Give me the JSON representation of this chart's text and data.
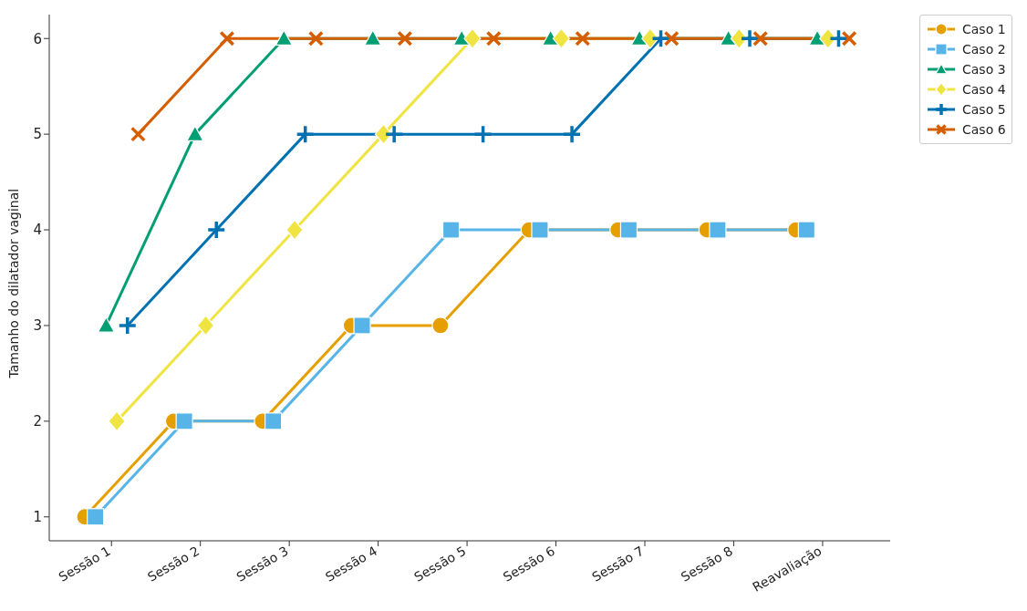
{
  "chart_data": {
    "type": "line",
    "ylabel": "Tamanho do dilatador vaginal",
    "categories": [
      "Sessão 1",
      "Sessão 2",
      "Sessão 3",
      "Sessão 4",
      "Sessão 5",
      "Sessão 6",
      "Sessão 7",
      "Sessão 8",
      "Reavaliação"
    ],
    "series": [
      {
        "name": "Caso 1",
        "color": "#e69f00",
        "marker": "circle",
        "values": [
          1,
          2,
          2,
          3,
          3,
          4,
          4,
          4,
          4
        ]
      },
      {
        "name": "Caso 2",
        "color": "#56b4e9",
        "marker": "square",
        "values": [
          1,
          2,
          2,
          3,
          4,
          4,
          4,
          4,
          4
        ]
      },
      {
        "name": "Caso 3",
        "color": "#009e73",
        "marker": "triangle",
        "values": [
          3,
          5,
          6,
          6,
          6,
          6,
          6,
          6,
          6
        ]
      },
      {
        "name": "Caso 4",
        "color": "#f0e442",
        "marker": "diamond",
        "values": [
          2,
          3,
          4,
          5,
          6,
          6,
          6,
          6,
          6
        ]
      },
      {
        "name": "Caso 5",
        "color": "#0072b2",
        "marker": "plus",
        "values": [
          3,
          4,
          5,
          5,
          5,
          5,
          6,
          6,
          6
        ]
      },
      {
        "name": "Caso 6",
        "color": "#d55e00",
        "marker": "cross",
        "values": [
          5,
          6,
          6,
          6,
          6,
          6,
          6,
          6,
          6
        ]
      }
    ],
    "ylim": [
      0.75,
      6.25
    ],
    "yticks": [
      1,
      2,
      3,
      4,
      5,
      6
    ],
    "legend": "top right",
    "line_style": "solid"
  }
}
